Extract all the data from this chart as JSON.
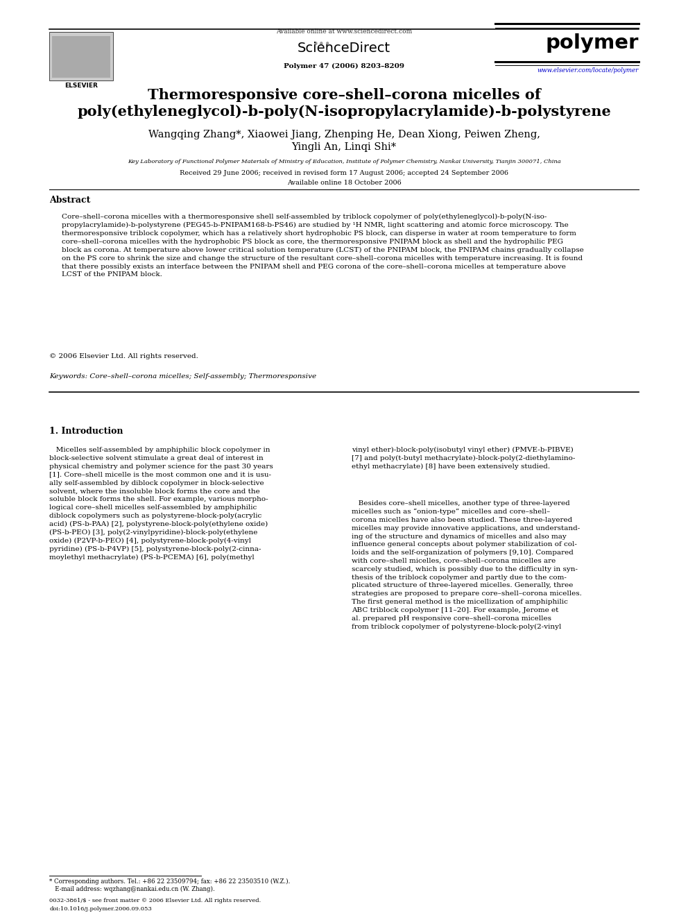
{
  "bg_color": "#ffffff",
  "title_line1": "Thermoresponsive core–shell–corona micelles of",
  "title_line2": "poly(ethyleneglycol)-b-poly(N-isopropylacrylamide)-b-polystyrene",
  "authors_line1": "Wangqing Zhang*, Xiaowei Jiang, Zhenping He, Dean Xiong, Peiwen Zheng,",
  "authors_line2": "Yingli An, Linqi Shi*",
  "affiliation": "Key Laboratory of Functional Polymer Materials of Ministry of Education, Institute of Polymer Chemistry, Nankai University, Tianjin 300071, China",
  "received": "Received 29 June 2006; received in revised form 17 August 2006; accepted 24 September 2006",
  "available": "Available online 18 October 2006",
  "journal_name": "Polymer 47 (2006) 8203–8209",
  "journal_url": "www.elsevier.com/locate/polymer",
  "online_text": "Available online at www.sciencedirect.com",
  "abstract_heading": "Abstract",
  "abstract_text": "Core–shell–corona micelles with a thermoresponsive shell self-assembled by triblock copolymer of poly(ethyleneglycol)-b-poly(N-iso-\npropylacrylamide)-b-polystyrene (PEG45-b-PNIPAM168-b-PS46) are studied by ¹H NMR, light scattering and atomic force microscopy. The\nthermoresponsive triblock copolymer, which has a relatively short hydrophobic PS block, can disperse in water at room temperature to form\ncore–shell–corona micelles with the hydrophobic PS block as core, the thermoresponsive PNIPAM block as shell and the hydrophilic PEG\nblock as corona. At temperature above lower critical solution temperature (LCST) of the PNIPAM block, the PNIPAM chains gradually collapse\non the PS core to shrink the size and change the structure of the resultant core–shell–corona micelles with temperature increasing. It is found\nthat there possibly exists an interface between the PNIPAM shell and PEG corona of the core–shell–corona micelles at temperature above\nLCST of the PNIPAM block.",
  "copyright": "© 2006 Elsevier Ltd. All rights reserved.",
  "keywords": "Keywords: Core–shell–corona micelles; Self-assembly; Thermoresponsive",
  "intro_heading": "1. Introduction",
  "intro_col1_para1": "   Micelles self-assembled by amphiphilic block copolymer in\nblock-selective solvent stimulate a great deal of interest in\nphysical chemistry and polymer science for the past 30 years\n[1]. Core–shell micelle is the most common one and it is usu-\nally self-assembled by diblock copolymer in block-selective\nsolvent, where the insoluble block forms the core and the\nsoluble block forms the shell. For example, various morpho-\nlogical core–shell micelles self-assembled by amphiphilic\ndiblock copolymers such as polystyrene-block-poly(acrylic\nacid) (PS-b-PAA) [2], polystyrene-block-poly(ethylene oxide)\n(PS-b-PEO) [3], poly(2-vinylpyridine)-block-poly(ethylene\noxide) (P2VP-b-PEO) [4], polystyrene-block-poly(4-vinyl\npyridine) (PS-b-P4VP) [5], polystyrene-block-poly(2-cinna-\nmoylethyl methacrylate) (PS-b-PCEMA) [6], poly(methyl",
  "intro_col2_para1": "vinyl ether)-block-poly(isobutyl vinyl ether) (PMVE-b-PIBVE)\n[7] and poly(t-butyl methacrylate)-block-poly(2-diethylamino-\nethyl methacrylate) [8] have been extensively studied.",
  "intro_col2_para2": "   Besides core–shell micelles, another type of three-layered\nmicelles such as “onion-type” micelles and core–shell–\ncorona micelles have also been studied. These three-layered\nmicelles may provide innovative applications, and understand-\ning of the structure and dynamics of micelles and also may\ninfluence general concepts about polymer stabilization of col-\nloids and the self-organization of polymers [9,10]. Compared\nwith core–shell micelles, core–shell–corona micelles are\nscarcely studied, which is possibly due to the difficulty in syn-\nthesis of the triblock copolymer and partly due to the com-\nplicated structure of three-layered micelles. Generally, three\nstrategies are proposed to prepare core–shell–corona micelles.\nThe first general method is the micellization of amphiphilic\nABC triblock copolymer [11–20]. For example, Jerome et\nal. prepared pH responsive core–shell–corona micelles\nfrom triblock copolymer of polystyrene-block-poly(2-vinyl",
  "footnote_star": "* Corresponding authors. Tel.: +86 22 23509794; fax: +86 22 23503510 (W.Z.).\n   E-mail address: wqzhang@nankai.edu.cn (W. Zhang).",
  "issn_text": "0032-3861/$ - see front matter © 2006 Elsevier Ltd. All rights reserved.",
  "doi_text": "doi:10.1016/j.polymer.2006.09.053"
}
